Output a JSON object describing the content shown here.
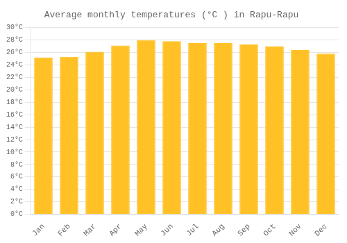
{
  "chart_data": {
    "type": "bar",
    "title": "Average monthly temperatures (°C ) in Rapu-Rapu",
    "categories": [
      "Jan",
      "Feb",
      "Mar",
      "Apr",
      "May",
      "Jun",
      "Jul",
      "Aug",
      "Sep",
      "Oct",
      "Nov",
      "Dec"
    ],
    "values": [
      25.2,
      25.3,
      26.1,
      27.1,
      28.0,
      27.8,
      27.5,
      27.5,
      27.3,
      27.0,
      26.4,
      25.8
    ],
    "color": "#FFC125",
    "ylim": [
      0,
      30
    ],
    "yticks": [
      {
        "value": 0,
        "label": "0°C"
      },
      {
        "value": 2,
        "label": "2°C"
      },
      {
        "value": 4,
        "label": "4°C"
      },
      {
        "value": 6,
        "label": "6°C"
      },
      {
        "value": 8,
        "label": "8°C"
      },
      {
        "value": 10,
        "label": "10°C"
      },
      {
        "value": 12,
        "label": "12°C"
      },
      {
        "value": 14,
        "label": "14°C"
      },
      {
        "value": 16,
        "label": "16°C"
      },
      {
        "value": 18,
        "label": "18°C"
      },
      {
        "value": 20,
        "label": "20°C"
      },
      {
        "value": 22,
        "label": "22°C"
      },
      {
        "value": 24,
        "label": "24°C"
      },
      {
        "value": 26,
        "label": "26°C"
      },
      {
        "value": 28,
        "label": "28°C"
      },
      {
        "value": 30,
        "label": "30°C"
      }
    ],
    "grid": true
  }
}
